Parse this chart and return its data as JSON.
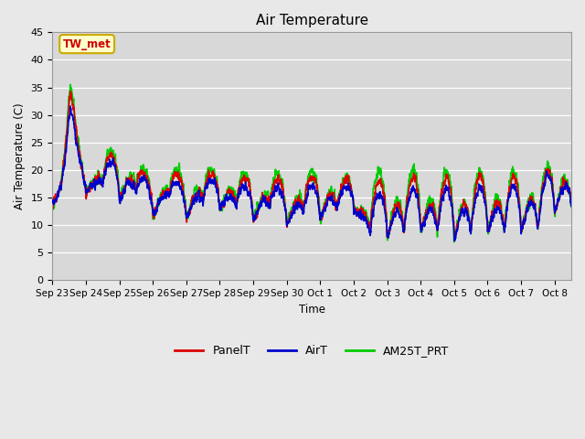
{
  "title": "Air Temperature",
  "ylabel": "Air Temperature (C)",
  "xlabel": "Time",
  "ylim": [
    0,
    45
  ],
  "xlim_days": 15.5,
  "background_color": "#e8e8e8",
  "plot_bg_color": "#d8d8d8",
  "annotation_text": "TW_met",
  "annotation_color": "#cc0000",
  "annotation_bg": "#ffffcc",
  "annotation_border": "#ccaa00",
  "series": {
    "PanelT": {
      "color": "#dd0000",
      "lw": 1.2
    },
    "AirT": {
      "color": "#0000cc",
      "lw": 1.2
    },
    "AM25T_PRT": {
      "color": "#00cc00",
      "lw": 1.2
    }
  },
  "xtick_labels": [
    "Sep 23",
    "Sep 24",
    "Sep 25",
    "Sep 26",
    "Sep 27",
    "Sep 28",
    "Sep 29",
    "Sep 30",
    "Oct 1",
    "Oct 2",
    "Oct 3",
    "Oct 4",
    "Oct 5",
    "Oct 6",
    "Oct 7",
    "Oct 8"
  ],
  "ytick_labels": [
    "0",
    "5",
    "10",
    "15",
    "20",
    "25",
    "30",
    "35",
    "40",
    "45"
  ]
}
